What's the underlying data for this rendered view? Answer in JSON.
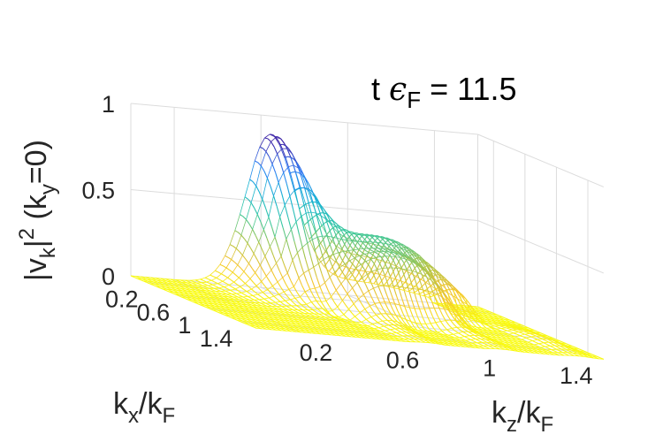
{
  "chart_data": {
    "type": "surface",
    "title": "",
    "annotation": {
      "prefix": "t ",
      "symbol": "ϵ",
      "subscript": "F",
      "suffix": " = 11.5"
    },
    "xlabel": {
      "main": "k",
      "sub": "x",
      "rest": "/k",
      "sub2": "F"
    },
    "ylabel": {
      "main": "k",
      "sub": "z",
      "rest": "/k",
      "sub2": "F"
    },
    "zlabel": {
      "p1": "|v",
      "sub1": "k",
      "p2": "|",
      "sup": "2",
      "p3": " (k",
      "sub2": "y",
      "p4": "=0)"
    },
    "x_ticks": [
      "0.2",
      "0.6",
      "1",
      "1.4"
    ],
    "y_ticks": [
      "0.2",
      "0.6",
      "1",
      "1.4"
    ],
    "z_ticks": [
      "0",
      "0.5",
      "1"
    ],
    "xlim": [
      0,
      1.6
    ],
    "ylim": [
      0,
      1.6
    ],
    "zlim": [
      0,
      1
    ],
    "colormap": [
      "#3e26a8",
      "#2f7ff6",
      "#15b2d3",
      "#38c8a0",
      "#a9c54a",
      "#f4c430",
      "#f9fb0e"
    ],
    "colormap_reversed": true,
    "peak_value": 0.86,
    "peak_kx": 0.0,
    "peak_kz": 0.64
  }
}
